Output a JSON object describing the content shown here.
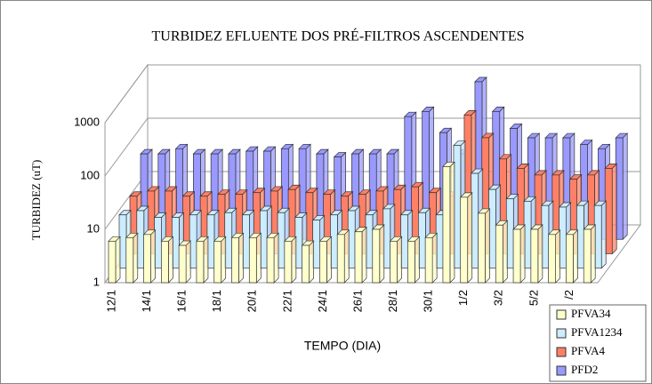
{
  "chart_data": {
    "type": "bar3d",
    "title": "TURBIDEZ EFLUENTE DOS PRÉ-FILTROS ASCENDENTES",
    "y_label": "TURBIDEZ (uT)",
    "x_label": "TEMPO (DIA)",
    "log_scale": true,
    "ylim": [
      1,
      1000
    ],
    "yticks": [
      1,
      10,
      100,
      1000
    ],
    "grid": true,
    "legend": "bottom-right",
    "categories": [
      "12/1",
      null,
      "14/1",
      null,
      "16/1",
      null,
      "18/1",
      null,
      "20/1",
      null,
      "22/1",
      null,
      "24/1",
      null,
      "26/1",
      null,
      "28/1",
      null,
      "30/1",
      null,
      "1/2",
      null,
      "3/2",
      null,
      "5/2",
      null,
      "/2",
      null
    ],
    "series": [
      {
        "name": "PFVA34",
        "color": "#ffffcc",
        "values": [
          6,
          7,
          8,
          6,
          5,
          6,
          6,
          7,
          7,
          7,
          6,
          5,
          6,
          8,
          9,
          10,
          6,
          6,
          7,
          150,
          40,
          20,
          12,
          10,
          10,
          8,
          8,
          10
        ]
      },
      {
        "name": "PFVA1234",
        "color": "#ccecff",
        "values": [
          10,
          12,
          9,
          9,
          10,
          10,
          11,
          10,
          12,
          11,
          9,
          8,
          10,
          12,
          10,
          13,
          10,
          11,
          10,
          200,
          60,
          30,
          20,
          18,
          15,
          14,
          15,
          15
        ]
      },
      {
        "name": "PFVA4",
        "color": "#ff8066",
        "values": [
          12,
          15,
          15,
          12,
          12,
          13,
          13,
          14,
          15,
          16,
          14,
          13,
          12,
          13,
          15,
          16,
          18,
          14,
          12,
          400,
          150,
          60,
          40,
          30,
          30,
          25,
          30,
          40
        ]
      },
      {
        "name": "PFD2",
        "color": "#9999ff",
        "values": [
          40,
          40,
          50,
          40,
          40,
          40,
          45,
          45,
          50,
          50,
          40,
          35,
          40,
          40,
          40,
          200,
          250,
          100,
          40,
          900,
          250,
          120,
          80,
          80,
          80,
          60,
          50,
          80
        ]
      }
    ]
  }
}
